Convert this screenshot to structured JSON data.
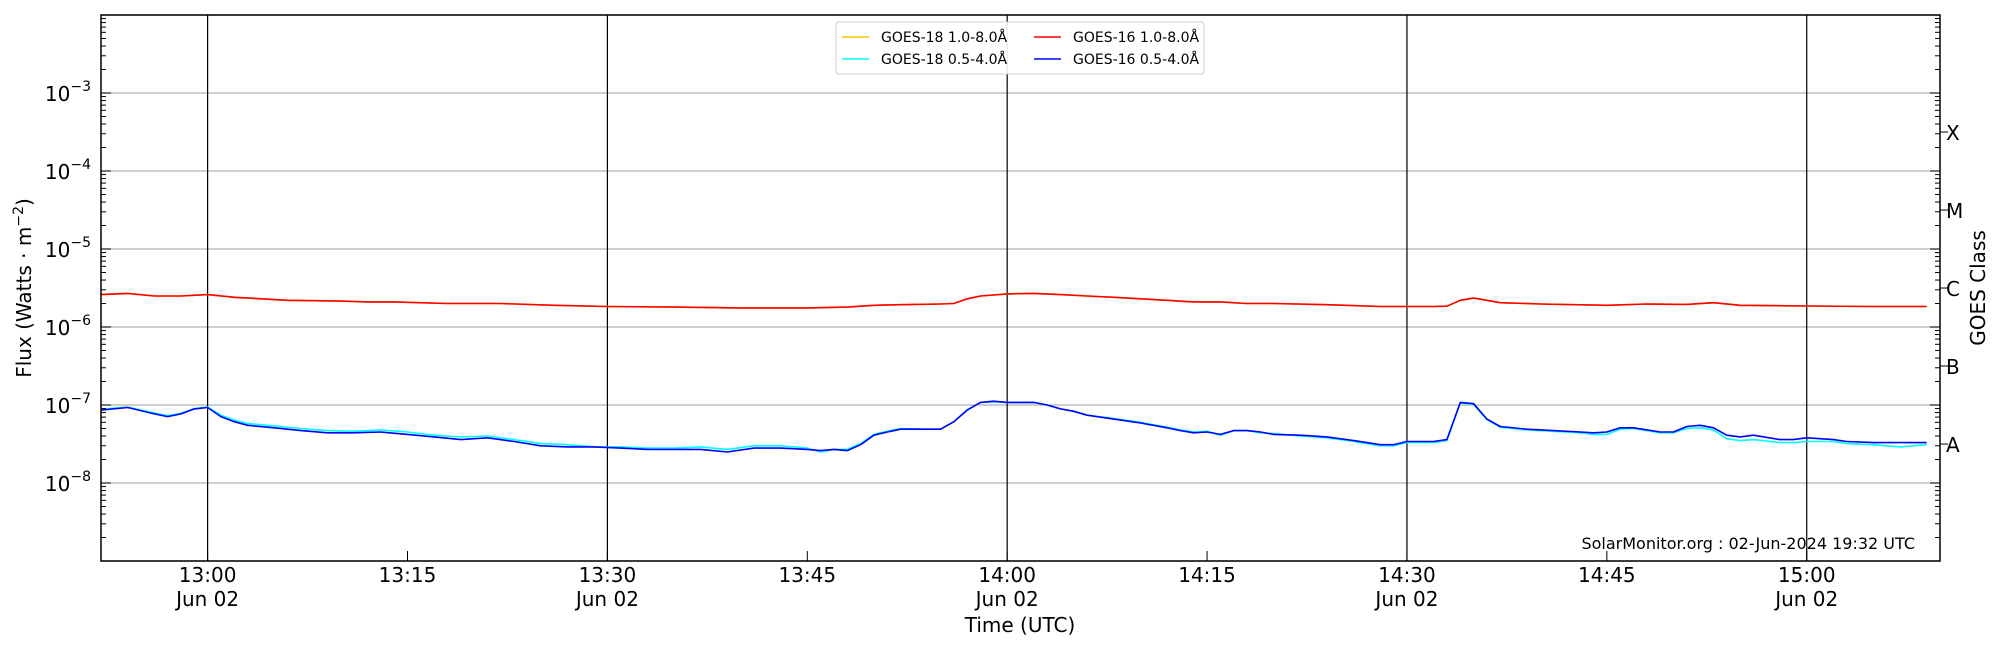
{
  "chart_data": {
    "type": "line",
    "xlabel": "Time (UTC)",
    "ylabel": "Flux (Watts · m",
    "ylabel_exp": "−2",
    "ylabel_close": ")",
    "right_label": "GOES Class",
    "xlim": [
      "12:52",
      "15:10"
    ],
    "ylim": [
      1e-09,
      0.01
    ],
    "yscale": "log",
    "grid": true,
    "legend_placement": "top-center",
    "watermark": "SolarMonitor.org : 02-Jun-2024 19:32 UTC",
    "yticks": [
      {
        "value": 0.001,
        "base": "10",
        "exp": "−3"
      },
      {
        "value": 0.0001,
        "base": "10",
        "exp": "−4"
      },
      {
        "value": 1e-05,
        "base": "10",
        "exp": "−5"
      },
      {
        "value": 1e-06,
        "base": "10",
        "exp": "−6"
      },
      {
        "value": 1e-07,
        "base": "10",
        "exp": "−7"
      },
      {
        "value": 1e-08,
        "base": "10",
        "exp": "−8"
      }
    ],
    "xticks": [
      {
        "time": "13:00",
        "label": "13:00",
        "date": "Jun 02"
      },
      {
        "time": "13:15",
        "label": "13:15",
        "date": ""
      },
      {
        "time": "13:30",
        "label": "13:30",
        "date": "Jun 02"
      },
      {
        "time": "13:45",
        "label": "13:45",
        "date": ""
      },
      {
        "time": "14:00",
        "label": "14:00",
        "date": "Jun 02"
      },
      {
        "time": "14:15",
        "label": "14:15",
        "date": ""
      },
      {
        "time": "14:30",
        "label": "14:30",
        "date": "Jun 02"
      },
      {
        "time": "14:45",
        "label": "14:45",
        "date": ""
      },
      {
        "time": "15:00",
        "label": "15:00",
        "date": "Jun 02"
      }
    ],
    "vlines": [
      "13:00",
      "13:30",
      "14:00",
      "14:30",
      "15:00"
    ],
    "goes_classes": [
      {
        "label": "X",
        "flux": 0.000316
      },
      {
        "label": "M",
        "flux": 3.16e-05
      },
      {
        "label": "C",
        "flux": 3.16e-06
      },
      {
        "label": "B",
        "flux": 3.16e-07
      },
      {
        "label": "A",
        "flux": 3.16e-08
      }
    ],
    "series": [
      {
        "name": "GOES-18 1.0-8.0Å",
        "color": "#ffc000",
        "x": [
          "12:52",
          "12:54",
          "12:56",
          "12:58",
          "13:00",
          "13:02",
          "13:04",
          "13:06",
          "13:10",
          "13:12",
          "13:14",
          "13:18",
          "13:22",
          "13:26",
          "13:30",
          "13:35",
          "13:40",
          "13:45",
          "13:48",
          "13:50",
          "13:52",
          "13:55",
          "13:56",
          "13:57",
          "13:58",
          "14:00",
          "14:02",
          "14:04",
          "14:06",
          "14:08",
          "14:10",
          "14:12",
          "14:14",
          "14:16",
          "14:18",
          "14:20",
          "14:24",
          "14:28",
          "14:30",
          "14:32",
          "14:33",
          "14:34",
          "14:35",
          "14:36",
          "14:37",
          "14:40",
          "14:45",
          "14:48",
          "14:51",
          "14:53",
          "14:55",
          "15:00",
          "15:05",
          "15:09"
        ],
        "values": [
          2.6e-06,
          2.7e-06,
          2.5e-06,
          2.5e-06,
          2.6e-06,
          2.4e-06,
          2.3e-06,
          2.2e-06,
          2.15e-06,
          2.1e-06,
          2.1e-06,
          2e-06,
          2e-06,
          1.9e-06,
          1.83e-06,
          1.8e-06,
          1.76e-06,
          1.76e-06,
          1.8e-06,
          1.9e-06,
          1.93e-06,
          1.97e-06,
          2e-06,
          2.3e-06,
          2.5e-06,
          2.66e-06,
          2.7e-06,
          2.6e-06,
          2.5e-06,
          2.4e-06,
          2.3e-06,
          2.2e-06,
          2.1e-06,
          2.1e-06,
          2e-06,
          2e-06,
          1.93e-06,
          1.83e-06,
          1.83e-06,
          1.83e-06,
          1.85e-06,
          2.2e-06,
          2.35e-06,
          2.2e-06,
          2.05e-06,
          1.97e-06,
          1.9e-06,
          1.97e-06,
          1.95e-06,
          2.05e-06,
          1.9e-06,
          1.86e-06,
          1.83e-06,
          1.83e-06
        ]
      },
      {
        "name": "GOES-16 1.0-8.0Å",
        "color": "#ff0000",
        "x": [
          "12:52",
          "12:54",
          "12:56",
          "12:58",
          "13:00",
          "13:02",
          "13:04",
          "13:06",
          "13:10",
          "13:12",
          "13:14",
          "13:18",
          "13:22",
          "13:26",
          "13:30",
          "13:35",
          "13:40",
          "13:45",
          "13:48",
          "13:50",
          "13:52",
          "13:55",
          "13:56",
          "13:57",
          "13:58",
          "14:00",
          "14:02",
          "14:04",
          "14:06",
          "14:08",
          "14:10",
          "14:12",
          "14:14",
          "14:16",
          "14:18",
          "14:20",
          "14:24",
          "14:28",
          "14:30",
          "14:32",
          "14:33",
          "14:34",
          "14:35",
          "14:36",
          "14:37",
          "14:40",
          "14:45",
          "14:48",
          "14:51",
          "14:53",
          "14:55",
          "15:00",
          "15:05",
          "15:09"
        ],
        "values": [
          2.6e-06,
          2.7e-06,
          2.5e-06,
          2.5e-06,
          2.6e-06,
          2.4e-06,
          2.3e-06,
          2.2e-06,
          2.15e-06,
          2.1e-06,
          2.1e-06,
          2e-06,
          2e-06,
          1.9e-06,
          1.83e-06,
          1.8e-06,
          1.76e-06,
          1.76e-06,
          1.8e-06,
          1.9e-06,
          1.93e-06,
          1.97e-06,
          2e-06,
          2.3e-06,
          2.5e-06,
          2.66e-06,
          2.7e-06,
          2.6e-06,
          2.5e-06,
          2.4e-06,
          2.3e-06,
          2.2e-06,
          2.1e-06,
          2.1e-06,
          2e-06,
          2e-06,
          1.93e-06,
          1.83e-06,
          1.83e-06,
          1.83e-06,
          1.85e-06,
          2.2e-06,
          2.35e-06,
          2.2e-06,
          2.05e-06,
          1.97e-06,
          1.9e-06,
          1.97e-06,
          1.95e-06,
          2.05e-06,
          1.9e-06,
          1.86e-06,
          1.83e-06,
          1.83e-06
        ]
      },
      {
        "name": "GOES-18 0.5-4.0Å",
        "color": "#00ffff",
        "x": [
          "12:52",
          "12:54",
          "12:56",
          "12:57",
          "12:58",
          "12:59",
          "13:00",
          "13:01",
          "13:02",
          "13:03",
          "13:05",
          "13:07",
          "13:09",
          "13:11",
          "13:13",
          "13:15",
          "13:17",
          "13:19",
          "13:21",
          "13:23",
          "13:25",
          "13:27",
          "13:29",
          "13:31",
          "13:33",
          "13:35",
          "13:37",
          "13:39",
          "13:41",
          "13:43",
          "13:45",
          "13:46",
          "13:47",
          "13:48",
          "13:49",
          "13:50",
          "13:51",
          "13:52",
          "13:54",
          "13:55",
          "13:56",
          "13:57",
          "13:58",
          "13:59",
          "14:00",
          "14:02",
          "14:03",
          "14:04",
          "14:05",
          "14:06",
          "14:08",
          "14:10",
          "14:12",
          "14:13",
          "14:14",
          "14:15",
          "14:16",
          "14:17",
          "14:18",
          "14:19",
          "14:20",
          "14:22",
          "14:24",
          "14:26",
          "14:28",
          "14:29",
          "14:30",
          "14:31",
          "14:32",
          "14:33",
          "14:34",
          "14:35",
          "14:36",
          "14:37",
          "14:39",
          "14:41",
          "14:43",
          "14:44",
          "14:45",
          "14:46",
          "14:47",
          "14:49",
          "14:50",
          "14:51",
          "14:52",
          "14:53",
          "14:54",
          "14:55",
          "14:56",
          "14:58",
          "14:59",
          "15:00",
          "15:02",
          "15:03",
          "15:05",
          "15:07",
          "15:09"
        ],
        "values": [
          8.8e-08,
          9.4e-08,
          7.9e-08,
          7.3e-08,
          7.8e-08,
          9e-08,
          9.4e-08,
          7.4e-08,
          6.4e-08,
          5.8e-08,
          5.4e-08,
          5e-08,
          4.7e-08,
          4.6e-08,
          4.8e-08,
          4.5e-08,
          4.1e-08,
          3.9e-08,
          4e-08,
          3.6e-08,
          3.2e-08,
          3.1e-08,
          2.9e-08,
          2.9e-08,
          2.8e-08,
          2.8e-08,
          2.9e-08,
          2.7e-08,
          3e-08,
          3e-08,
          2.8e-08,
          2.5e-08,
          2.7e-08,
          2.7e-08,
          3.2e-08,
          4.2e-08,
          4.6e-08,
          5e-08,
          4.9e-08,
          4.9e-08,
          6.1e-08,
          8.7e-08,
          1.08e-07,
          1.1e-07,
          1.08e-07,
          1.08e-07,
          1e-07,
          8.9e-08,
          8.3e-08,
          7.4e-08,
          6.7e-08,
          6e-08,
          5.2e-08,
          4.8e-08,
          4.5e-08,
          4.6e-08,
          4.1e-08,
          4.7e-08,
          4.7e-08,
          4.4e-08,
          4.3e-08,
          4e-08,
          3.8e-08,
          3.4e-08,
          3e-08,
          3e-08,
          3.3e-08,
          3.3e-08,
          3.3e-08,
          3.5e-08,
          1.06e-07,
          1.02e-07,
          6.5e-08,
          5.2e-08,
          4.8e-08,
          4.6e-08,
          4.4e-08,
          4.2e-08,
          4.2e-08,
          4.9e-08,
          5e-08,
          4.4e-08,
          4.4e-08,
          5e-08,
          5.1e-08,
          4.8e-08,
          3.7e-08,
          3.5e-08,
          3.6e-08,
          3.3e-08,
          3.3e-08,
          3.4e-08,
          3.4e-08,
          3.2e-08,
          3.1e-08,
          2.9e-08,
          3.1e-08
        ]
      },
      {
        "name": "GOES-16 0.5-4.0Å",
        "color": "#0000ff",
        "x": [
          "12:52",
          "12:54",
          "12:56",
          "12:57",
          "12:58",
          "12:59",
          "13:00",
          "13:01",
          "13:02",
          "13:03",
          "13:05",
          "13:07",
          "13:09",
          "13:11",
          "13:13",
          "13:15",
          "13:17",
          "13:19",
          "13:21",
          "13:23",
          "13:25",
          "13:27",
          "13:29",
          "13:31",
          "13:33",
          "13:35",
          "13:37",
          "13:39",
          "13:41",
          "13:43",
          "13:45",
          "13:46",
          "13:47",
          "13:48",
          "13:49",
          "13:50",
          "13:51",
          "13:52",
          "13:54",
          "13:55",
          "13:56",
          "13:57",
          "13:58",
          "13:59",
          "14:00",
          "14:02",
          "14:03",
          "14:04",
          "14:05",
          "14:06",
          "14:08",
          "14:10",
          "14:12",
          "14:13",
          "14:14",
          "14:15",
          "14:16",
          "14:17",
          "14:18",
          "14:19",
          "14:20",
          "14:22",
          "14:24",
          "14:26",
          "14:28",
          "14:29",
          "14:30",
          "14:31",
          "14:32",
          "14:33",
          "14:34",
          "14:35",
          "14:36",
          "14:37",
          "14:39",
          "14:41",
          "14:43",
          "14:44",
          "14:45",
          "14:46",
          "14:47",
          "14:49",
          "14:50",
          "14:51",
          "14:52",
          "14:53",
          "14:54",
          "14:55",
          "14:56",
          "14:58",
          "14:59",
          "15:00",
          "15:02",
          "15:03",
          "15:05",
          "15:07",
          "15:09"
        ],
        "values": [
          8.6e-08,
          9.3e-08,
          7.7e-08,
          7.1e-08,
          7.7e-08,
          8.9e-08,
          9.3e-08,
          7.1e-08,
          6.1e-08,
          5.5e-08,
          5.1e-08,
          4.7e-08,
          4.4e-08,
          4.4e-08,
          4.5e-08,
          4.2e-08,
          3.9e-08,
          3.6e-08,
          3.8e-08,
          3.4e-08,
          3e-08,
          2.9e-08,
          2.9e-08,
          2.8e-08,
          2.7e-08,
          2.7e-08,
          2.7e-08,
          2.5e-08,
          2.8e-08,
          2.8e-08,
          2.7e-08,
          2.6e-08,
          2.7e-08,
          2.6e-08,
          3.1e-08,
          4.1e-08,
          4.5e-08,
          4.9e-08,
          4.9e-08,
          4.9e-08,
          6.1e-08,
          8.6e-08,
          1.08e-07,
          1.12e-07,
          1.08e-07,
          1.08e-07,
          1e-07,
          8.9e-08,
          8.3e-08,
          7.4e-08,
          6.6e-08,
          5.9e-08,
          5.1e-08,
          4.7e-08,
          4.4e-08,
          4.5e-08,
          4.2e-08,
          4.7e-08,
          4.7e-08,
          4.5e-08,
          4.2e-08,
          4.1e-08,
          3.9e-08,
          3.5e-08,
          3.1e-08,
          3.1e-08,
          3.4e-08,
          3.4e-08,
          3.4e-08,
          3.6e-08,
          1.08e-07,
          1.04e-07,
          6.6e-08,
          5.3e-08,
          4.9e-08,
          4.7e-08,
          4.5e-08,
          4.4e-08,
          4.5e-08,
          5.1e-08,
          5.1e-08,
          4.5e-08,
          4.5e-08,
          5.3e-08,
          5.5e-08,
          5.1e-08,
          4.1e-08,
          3.9e-08,
          4.1e-08,
          3.6e-08,
          3.6e-08,
          3.8e-08,
          3.6e-08,
          3.4e-08,
          3.3e-08,
          3.3e-08,
          3.3e-08
        ]
      }
    ],
    "legend_order": [
      0,
      2,
      1,
      3
    ]
  }
}
